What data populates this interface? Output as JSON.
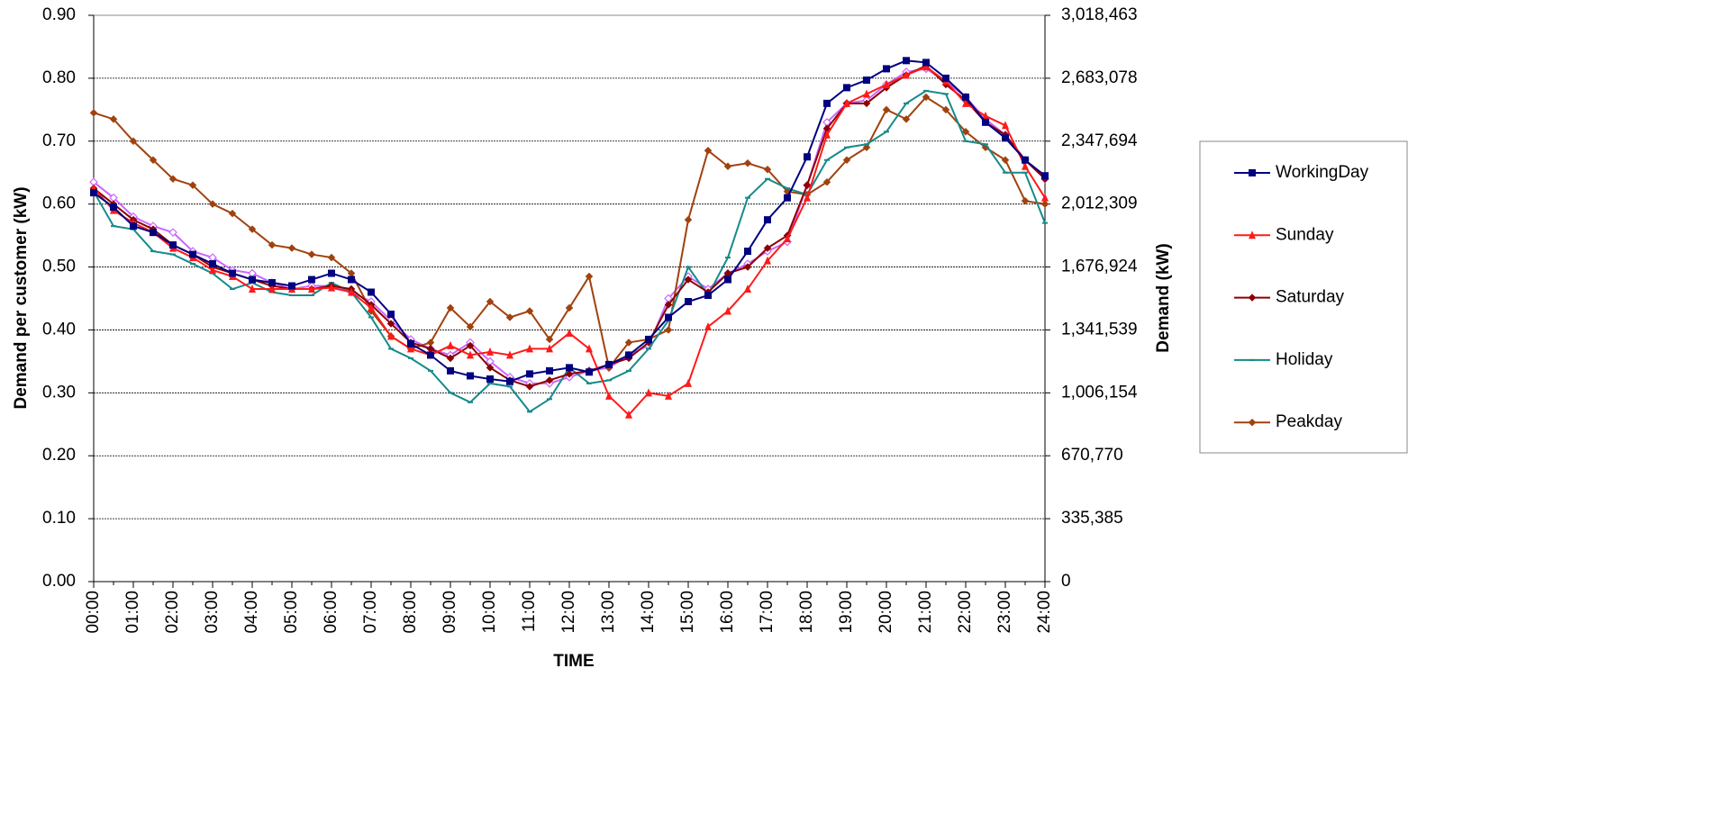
{
  "chart_data": {
    "type": "line",
    "xlabel": "TIME",
    "ylabel": "Demand per customer (kW)",
    "y2label": "Demand (kW)",
    "categories": [
      "00:00",
      null,
      "01:00",
      null,
      "02:00",
      null,
      "03:00",
      null,
      "04:00",
      null,
      "05:00",
      null,
      "06:00",
      null,
      "07:00",
      null,
      "08:00",
      null,
      "09:00",
      null,
      "10:00",
      null,
      "11:00",
      null,
      "12:00",
      null,
      "13:00",
      null,
      "14:00",
      null,
      "15:00",
      null,
      "16:00",
      null,
      "17:00",
      null,
      "18:00",
      null,
      "19:00",
      null,
      "20:00",
      null,
      "21:00",
      null,
      "22:00",
      null,
      "23:00",
      null,
      "24:00"
    ],
    "ylim": [
      0,
      0.9
    ],
    "yticks": [
      {
        "value": 0,
        "label": "0.00"
      },
      {
        "value": 0.1,
        "label": "0.10"
      },
      {
        "value": 0.2,
        "label": "0.20"
      },
      {
        "value": 0.3,
        "label": "0.30"
      },
      {
        "value": 0.4,
        "label": "0.40"
      },
      {
        "value": 0.5,
        "label": "0.50"
      },
      {
        "value": 0.6,
        "label": "0.60"
      },
      {
        "value": 0.7,
        "label": "0.70"
      },
      {
        "value": 0.8,
        "label": "0.80"
      },
      {
        "value": 0.9,
        "label": "0.90"
      }
    ],
    "y2lim": [
      0,
      3018463
    ],
    "y2ticks": [
      0,
      {
        "value": 335385,
        "label": "335,385"
      },
      {
        "value": 670770,
        "label": "670,770"
      },
      {
        "value": 1006154,
        "label": "1,006,154"
      },
      {
        "value": 1341539,
        "label": "1,341,539"
      },
      {
        "value": 1676924,
        "label": "1,676,924"
      },
      {
        "value": 2012309,
        "label": "2,012,309"
      },
      {
        "value": 2347694,
        "label": "2,347,694"
      },
      {
        "value": 2683078,
        "label": "2,683,078"
      },
      {
        "value": 3018463,
        "label": "3,018,463"
      }
    ],
    "grid": true,
    "legend": "right",
    "series": [
      {
        "color": "#cc66ff",
        "marker": "open-diamond",
        "values": [
          0.635,
          0.61,
          0.58,
          0.565,
          0.555,
          0.525,
          0.515,
          0.495,
          0.49,
          0.475,
          0.465,
          0.47,
          0.47,
          0.46,
          0.445,
          0.415,
          0.385,
          0.37,
          0.36,
          0.38,
          0.35,
          0.325,
          0.315,
          0.315,
          0.325,
          0.335,
          0.34,
          0.36,
          0.375,
          0.45,
          0.485,
          0.465,
          0.49,
          0.505,
          0.525,
          0.54,
          0.63,
          0.73,
          0.76,
          0.765,
          0.79,
          0.81,
          0.815,
          0.795,
          0.77,
          0.735,
          0.71,
          0.67,
          0.64
        ]
      },
      {
        "name": "Peakday",
        "color": "#a0420e",
        "marker": "diamond",
        "values": [
          0.745,
          0.735,
          0.7,
          0.67,
          0.64,
          0.63,
          0.6,
          0.585,
          0.56,
          0.535,
          0.53,
          0.52,
          0.515,
          0.49,
          0.43,
          0.39,
          0.37,
          0.38,
          0.435,
          0.405,
          0.445,
          0.42,
          0.43,
          0.385,
          0.435,
          0.485,
          0.34,
          0.38,
          0.385,
          0.4,
          0.575,
          0.685,
          0.66,
          0.665,
          0.655,
          0.62,
          0.615,
          0.635,
          0.67,
          0.69,
          0.75,
          0.735,
          0.77,
          0.75,
          0.715,
          0.69,
          0.67,
          0.605,
          0.6
        ]
      },
      {
        "name": "Holiday",
        "color": "#168a8a",
        "marker": "dash",
        "values": [
          0.62,
          0.565,
          0.56,
          0.525,
          0.52,
          0.505,
          0.49,
          0.465,
          0.475,
          0.46,
          0.455,
          0.455,
          0.475,
          0.46,
          0.42,
          0.37,
          0.355,
          0.335,
          0.3,
          0.285,
          0.315,
          0.31,
          0.27,
          0.29,
          0.34,
          0.315,
          0.32,
          0.335,
          0.37,
          0.415,
          0.5,
          0.455,
          0.515,
          0.61,
          0.64,
          0.625,
          0.615,
          0.67,
          0.69,
          0.695,
          0.715,
          0.76,
          0.78,
          0.775,
          0.7,
          0.695,
          0.65,
          0.65,
          0.57
        ]
      },
      {
        "name": "Saturday",
        "color": "#8b0000",
        "marker": "diamond",
        "values": [
          0.625,
          0.6,
          0.575,
          0.56,
          0.535,
          0.52,
          0.5,
          0.49,
          0.48,
          0.47,
          0.465,
          0.465,
          0.47,
          0.465,
          0.44,
          0.41,
          0.38,
          0.37,
          0.355,
          0.375,
          0.34,
          0.32,
          0.31,
          0.32,
          0.33,
          0.335,
          0.345,
          0.355,
          0.38,
          0.44,
          0.48,
          0.46,
          0.49,
          0.5,
          0.53,
          0.55,
          0.63,
          0.72,
          0.76,
          0.76,
          0.785,
          0.805,
          0.82,
          0.79,
          0.765,
          0.73,
          0.71,
          0.67,
          0.64
        ]
      },
      {
        "name": "Sunday",
        "color": "#ff1a1a",
        "marker": "triangle",
        "values": [
          0.625,
          0.59,
          0.57,
          0.555,
          0.53,
          0.515,
          0.495,
          0.485,
          0.465,
          0.465,
          0.465,
          0.465,
          0.467,
          0.46,
          0.435,
          0.39,
          0.37,
          0.36,
          0.375,
          0.36,
          0.365,
          0.36,
          0.37,
          0.37,
          0.395,
          0.37,
          0.295,
          0.265,
          0.3,
          0.295,
          0.315,
          0.405,
          0.43,
          0.465,
          0.51,
          0.545,
          0.61,
          0.71,
          0.76,
          0.775,
          0.79,
          0.805,
          0.818,
          0.795,
          0.76,
          0.74,
          0.725,
          0.66,
          0.61
        ]
      },
      {
        "name": "WorkingDay",
        "color": "#000080",
        "marker": "square",
        "values": [
          0.618,
          0.595,
          0.565,
          0.555,
          0.535,
          0.52,
          0.505,
          0.49,
          0.48,
          0.475,
          0.47,
          0.48,
          0.49,
          0.48,
          0.46,
          0.425,
          0.378,
          0.36,
          0.335,
          0.327,
          0.322,
          0.318,
          0.33,
          0.335,
          0.34,
          0.333,
          0.345,
          0.36,
          0.385,
          0.42,
          0.445,
          0.455,
          0.48,
          0.525,
          0.575,
          0.61,
          0.675,
          0.76,
          0.785,
          0.797,
          0.815,
          0.828,
          0.825,
          0.8,
          0.77,
          0.73,
          0.705,
          0.67,
          0.645
        ]
      }
    ]
  }
}
